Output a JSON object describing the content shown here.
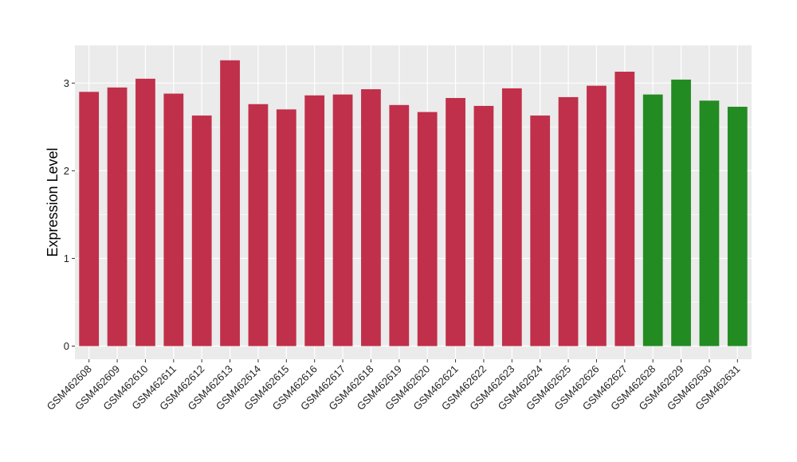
{
  "chart_data": {
    "type": "bar",
    "title": "",
    "xlabel": "",
    "ylabel": "Expression Level",
    "ylim": [
      -0.15,
      3.43
    ],
    "yticks": [
      0,
      1,
      2,
      3
    ],
    "grid": true,
    "legend": "none",
    "categories": [
      "GSM462608",
      "GSM462609",
      "GSM462610",
      "GSM462611",
      "GSM462612",
      "GSM462613",
      "GSM462614",
      "GSM462615",
      "GSM462616",
      "GSM462617",
      "GSM462618",
      "GSM462619",
      "GSM462620",
      "GSM462621",
      "GSM462622",
      "GSM462623",
      "GSM462624",
      "GSM462625",
      "GSM462626",
      "GSM462627",
      "GSM462628",
      "GSM462629",
      "GSM462630",
      "GSM462631"
    ],
    "values": [
      2.9,
      2.95,
      3.05,
      2.88,
      2.63,
      3.26,
      2.76,
      2.7,
      2.86,
      2.87,
      2.93,
      2.75,
      2.67,
      2.83,
      2.74,
      2.94,
      2.63,
      2.84,
      2.97,
      3.13,
      2.87,
      3.04,
      2.8,
      2.73
    ],
    "bar_colors": [
      "#c0304a",
      "#c0304a",
      "#c0304a",
      "#c0304a",
      "#c0304a",
      "#c0304a",
      "#c0304a",
      "#c0304a",
      "#c0304a",
      "#c0304a",
      "#c0304a",
      "#c0304a",
      "#c0304a",
      "#c0304a",
      "#c0304a",
      "#c0304a",
      "#c0304a",
      "#c0304a",
      "#c0304a",
      "#c0304a",
      "#228b22",
      "#228b22",
      "#228b22",
      "#228b22"
    ],
    "panel_color": "#ebebeb",
    "grid_color": "#ffffff"
  }
}
